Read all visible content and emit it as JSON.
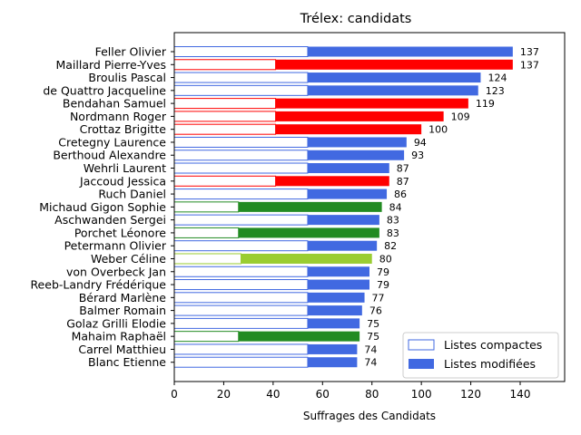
{
  "chart_data": {
    "type": "bar",
    "orientation": "horizontal",
    "stacked": true,
    "title": "Trélex: candidats",
    "xlabel": "Suffrages des Candidats",
    "ylabel": "",
    "xlim": [
      0,
      158
    ],
    "xticks": [
      0,
      20,
      40,
      60,
      80,
      100,
      120,
      140
    ],
    "grid": false,
    "legend": {
      "placement": "lower-right",
      "entries": [
        {
          "label": "Listes compactes",
          "style": "outline"
        },
        {
          "label": "Listes modifiées",
          "style": "filled"
        }
      ]
    },
    "series_names_in_legend": [
      "Listes compactes",
      "Listes modifiées"
    ],
    "bars": [
      {
        "candidate": "Feller Olivier",
        "compact": 54,
        "modified": 83,
        "total": 137,
        "color": "#4169e1"
      },
      {
        "candidate": "Maillard Pierre-Yves",
        "compact": 41,
        "modified": 96,
        "total": 137,
        "color": "#ff0000"
      },
      {
        "candidate": "Broulis Pascal",
        "compact": 54,
        "modified": 70,
        "total": 124,
        "color": "#4169e1"
      },
      {
        "candidate": "de Quattro Jacqueline",
        "compact": 54,
        "modified": 69,
        "total": 123,
        "color": "#4169e1"
      },
      {
        "candidate": "Bendahan Samuel",
        "compact": 41,
        "modified": 78,
        "total": 119,
        "color": "#ff0000"
      },
      {
        "candidate": "Nordmann Roger",
        "compact": 41,
        "modified": 68,
        "total": 109,
        "color": "#ff0000"
      },
      {
        "candidate": "Crottaz Brigitte",
        "compact": 41,
        "modified": 59,
        "total": 100,
        "color": "#ff0000"
      },
      {
        "candidate": "Cretegny Laurence",
        "compact": 54,
        "modified": 40,
        "total": 94,
        "color": "#4169e1"
      },
      {
        "candidate": "Berthoud Alexandre",
        "compact": 54,
        "modified": 39,
        "total": 93,
        "color": "#4169e1"
      },
      {
        "candidate": "Wehrli Laurent",
        "compact": 54,
        "modified": 33,
        "total": 87,
        "color": "#4169e1"
      },
      {
        "candidate": "Jaccoud Jessica",
        "compact": 41,
        "modified": 46,
        "total": 87,
        "color": "#ff0000"
      },
      {
        "candidate": "Ruch Daniel",
        "compact": 54,
        "modified": 32,
        "total": 86,
        "color": "#4169e1"
      },
      {
        "candidate": "Michaud Gigon Sophie",
        "compact": 26,
        "modified": 58,
        "total": 84,
        "color": "#228b22"
      },
      {
        "candidate": "Aschwanden Sergei",
        "compact": 54,
        "modified": 29,
        "total": 83,
        "color": "#4169e1"
      },
      {
        "candidate": "Porchet Léonore",
        "compact": 26,
        "modified": 57,
        "total": 83,
        "color": "#228b22"
      },
      {
        "candidate": "Petermann Olivier",
        "compact": 54,
        "modified": 28,
        "total": 82,
        "color": "#4169e1"
      },
      {
        "candidate": "Weber Céline",
        "compact": 27,
        "modified": 53,
        "total": 80,
        "color": "#9acd32"
      },
      {
        "candidate": "von Overbeck Jan",
        "compact": 54,
        "modified": 25,
        "total": 79,
        "color": "#4169e1"
      },
      {
        "candidate": "Reeb-Landry Frédérique",
        "compact": 54,
        "modified": 25,
        "total": 79,
        "color": "#4169e1"
      },
      {
        "candidate": "Bérard Marlène",
        "compact": 54,
        "modified": 23,
        "total": 77,
        "color": "#4169e1"
      },
      {
        "candidate": "Balmer Romain",
        "compact": 54,
        "modified": 22,
        "total": 76,
        "color": "#4169e1"
      },
      {
        "candidate": "Golaz Grilli Elodie",
        "compact": 54,
        "modified": 21,
        "total": 75,
        "color": "#4169e1"
      },
      {
        "candidate": "Mahaim Raphaël",
        "compact": 26,
        "modified": 49,
        "total": 75,
        "color": "#228b22"
      },
      {
        "candidate": "Carrel Matthieu",
        "compact": 54,
        "modified": 20,
        "total": 74,
        "color": "#4169e1"
      },
      {
        "candidate": "Blanc Etienne",
        "compact": 54,
        "modified": 20,
        "total": 74,
        "color": "#4169e1"
      }
    ],
    "legend_color": "#4169e1"
  }
}
